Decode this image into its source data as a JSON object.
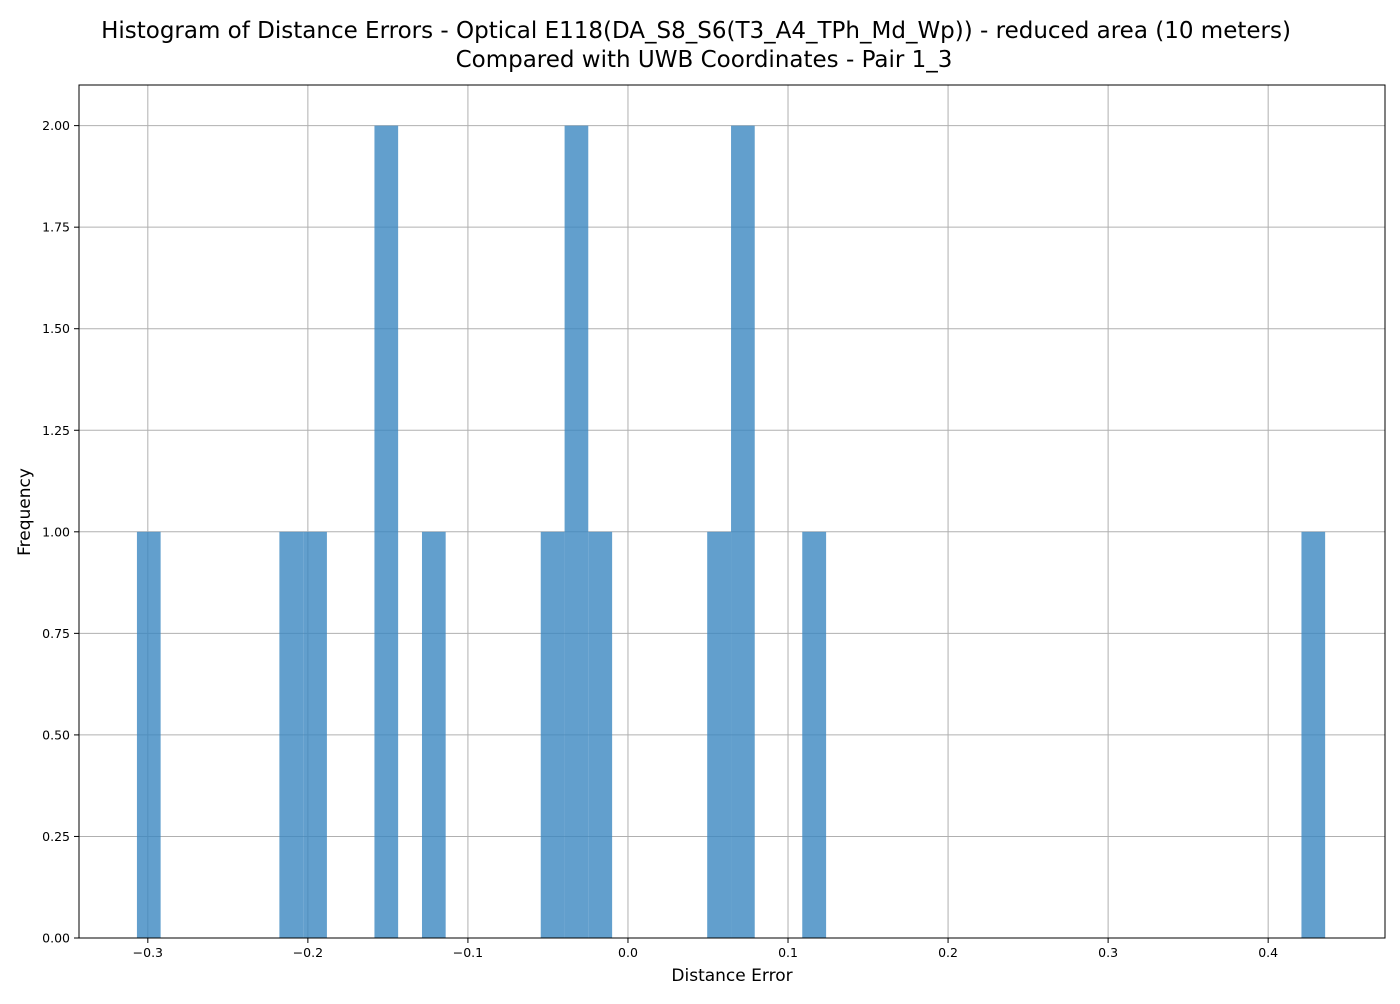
{
  "chart_data": {
    "type": "bar",
    "title": "Histogram of Distance Errors - Optical E118(DA_S8_S6(T3_A4_TPh_Md_Wp)) - reduced area (10 meters)",
    "subtitle": "Compared with UWB Coordinates - Pair 1_3",
    "xlabel": "Distance Error",
    "ylabel": "Frequency",
    "xlim": [
      -0.343,
      0.473
    ],
    "ylim": [
      0,
      2.1
    ],
    "xticks": [
      -0.3,
      -0.2,
      -0.1,
      0.0,
      0.1,
      0.2,
      0.3,
      0.4
    ],
    "xtick_labels": [
      "−0.3",
      "−0.2",
      "−0.1",
      "0.0",
      "0.1",
      "0.2",
      "0.3",
      "0.4"
    ],
    "yticks": [
      0.0,
      0.25,
      0.5,
      0.75,
      1.0,
      1.25,
      1.5,
      1.75,
      2.0
    ],
    "ytick_labels": [
      "0.00",
      "0.25",
      "0.50",
      "0.75",
      "1.00",
      "1.25",
      "1.50",
      "1.75",
      "2.00"
    ],
    "grid": true,
    "bar_color": "#3b87c0",
    "bar_opacity": 0.8,
    "bins": [
      {
        "x0": -0.3068,
        "x1": -0.292,
        "value": 1
      },
      {
        "x0": -0.2178,
        "x1": -0.2029,
        "value": 1
      },
      {
        "x0": -0.2029,
        "x1": -0.1881,
        "value": 1
      },
      {
        "x0": -0.1584,
        "x1": -0.1436,
        "value": 2
      },
      {
        "x0": -0.1287,
        "x1": -0.1139,
        "value": 1
      },
      {
        "x0": -0.0545,
        "x1": -0.0396,
        "value": 1
      },
      {
        "x0": -0.0396,
        "x1": -0.0248,
        "value": 2
      },
      {
        "x0": -0.0248,
        "x1": -0.0099,
        "value": 1
      },
      {
        "x0": 0.0495,
        "x1": 0.0644,
        "value": 1
      },
      {
        "x0": 0.0644,
        "x1": 0.0792,
        "value": 2
      },
      {
        "x0": 0.1089,
        "x1": 0.1238,
        "value": 1
      },
      {
        "x0": 0.4208,
        "x1": 0.4356,
        "value": 1
      }
    ]
  }
}
